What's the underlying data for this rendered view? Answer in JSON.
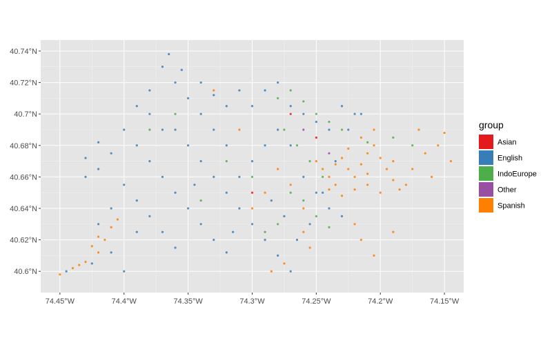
{
  "chart_data": {
    "type": "scatter",
    "title": "",
    "xlabel": "",
    "ylabel": "",
    "xlim": [
      -74.465,
      -74.135
    ],
    "ylim": [
      40.5865,
      40.747
    ],
    "x_ticks": [
      {
        "value": -74.45,
        "label": "74.45°W"
      },
      {
        "value": -74.4,
        "label": "74.4°W"
      },
      {
        "value": -74.35,
        "label": "74.35°W"
      },
      {
        "value": -74.3,
        "label": "74.3°W"
      },
      {
        "value": -74.25,
        "label": "74.25°W"
      },
      {
        "value": -74.2,
        "label": "74.2°W"
      },
      {
        "value": -74.15,
        "label": "74.15°W"
      }
    ],
    "y_ticks": [
      {
        "value": 40.6,
        "label": "40.6°N"
      },
      {
        "value": 40.62,
        "label": "40.62°N"
      },
      {
        "value": 40.64,
        "label": "40.64°N"
      },
      {
        "value": 40.66,
        "label": "40.66°N"
      },
      {
        "value": 40.68,
        "label": "40.68°N"
      },
      {
        "value": 40.7,
        "label": "40.7°N"
      },
      {
        "value": 40.72,
        "label": "40.72°N"
      },
      {
        "value": 40.74,
        "label": "40.74°N"
      }
    ],
    "grid": true,
    "legend": {
      "title": "group",
      "placement": "right",
      "entries": [
        {
          "name": "Asian",
          "color": "#e41a1c"
        },
        {
          "name": "English",
          "color": "#377eb8"
        },
        {
          "name": "IndoEurope",
          "color": "#4daf4a"
        },
        {
          "name": "Other",
          "color": "#984ea3"
        },
        {
          "name": "Spanish",
          "color": "#ff7f00"
        }
      ]
    },
    "series": [
      {
        "name": "English",
        "color": "#377eb8",
        "points": [
          [
            -74.445,
            40.6
          ],
          [
            -74.425,
            40.605
          ],
          [
            -74.41,
            40.612
          ],
          [
            -74.4,
            40.6
          ],
          [
            -74.39,
            40.625
          ],
          [
            -74.43,
            40.672
          ],
          [
            -74.42,
            40.682
          ],
          [
            -74.4,
            40.69
          ],
          [
            -74.39,
            40.705
          ],
          [
            -74.38,
            40.715
          ],
          [
            -74.37,
            40.73
          ],
          [
            -74.365,
            40.738
          ],
          [
            -74.355,
            40.728
          ],
          [
            -74.34,
            40.72
          ],
          [
            -74.33,
            40.712
          ],
          [
            -74.32,
            40.705
          ],
          [
            -74.31,
            40.715
          ],
          [
            -74.3,
            40.705
          ],
          [
            -74.29,
            40.715
          ],
          [
            -74.28,
            40.72
          ],
          [
            -74.27,
            40.705
          ],
          [
            -74.26,
            40.7
          ],
          [
            -74.25,
            40.695
          ],
          [
            -74.24,
            40.69
          ],
          [
            -74.23,
            40.705
          ],
          [
            -74.22,
            40.7
          ],
          [
            -74.36,
            40.69
          ],
          [
            -74.35,
            40.68
          ],
          [
            -74.34,
            40.67
          ],
          [
            -74.33,
            40.66
          ],
          [
            -74.32,
            40.65
          ],
          [
            -74.31,
            40.64
          ],
          [
            -74.3,
            40.63
          ],
          [
            -74.29,
            40.62
          ],
          [
            -74.28,
            40.61
          ],
          [
            -74.27,
            40.6
          ],
          [
            -74.38,
            40.67
          ],
          [
            -74.37,
            40.66
          ],
          [
            -74.36,
            40.65
          ],
          [
            -74.35,
            40.64
          ],
          [
            -74.34,
            40.63
          ],
          [
            -74.33,
            40.62
          ],
          [
            -74.32,
            40.612
          ],
          [
            -74.4,
            40.655
          ],
          [
            -74.39,
            40.645
          ],
          [
            -74.38,
            40.635
          ],
          [
            -74.37,
            40.625
          ],
          [
            -74.36,
            40.615
          ],
          [
            -74.41,
            40.64
          ],
          [
            -74.42,
            40.63
          ],
          [
            -74.26,
            40.66
          ],
          [
            -74.25,
            40.65
          ],
          [
            -74.24,
            40.64
          ],
          [
            -74.23,
            40.635
          ],
          [
            -74.27,
            40.68
          ],
          [
            -74.28,
            40.69
          ],
          [
            -74.29,
            40.68
          ],
          [
            -74.3,
            40.67
          ],
          [
            -74.31,
            40.66
          ],
          [
            -74.32,
            40.68
          ],
          [
            -74.33,
            40.69
          ],
          [
            -74.34,
            40.7
          ],
          [
            -74.35,
            40.71
          ],
          [
            -74.36,
            40.72
          ],
          [
            -74.38,
            40.7
          ],
          [
            -74.41,
            40.675
          ],
          [
            -74.42,
            40.665
          ],
          [
            -74.43,
            40.66
          ],
          [
            -74.39,
            40.68
          ],
          [
            -74.37,
            40.69
          ],
          [
            -74.345,
            40.655
          ],
          [
            -74.315,
            40.625
          ],
          [
            -74.285,
            40.645
          ],
          [
            -74.275,
            40.635
          ],
          [
            -74.265,
            40.62
          ],
          [
            -74.255,
            40.63
          ],
          [
            -74.245,
            40.65
          ],
          [
            -74.235,
            40.67
          ],
          [
            -74.225,
            40.69
          ],
          [
            -74.215,
            40.7
          ]
        ]
      },
      {
        "name": "Spanish",
        "color": "#ff7f00",
        "points": [
          [
            -74.45,
            40.598
          ],
          [
            -74.44,
            40.602
          ],
          [
            -74.43,
            40.606
          ],
          [
            -74.42,
            40.612
          ],
          [
            -74.415,
            40.62
          ],
          [
            -74.41,
            40.628
          ],
          [
            -74.405,
            40.633
          ],
          [
            -74.425,
            40.616
          ],
          [
            -74.435,
            40.604
          ],
          [
            -74.42,
            40.622
          ],
          [
            -74.25,
            40.67
          ],
          [
            -74.245,
            40.665
          ],
          [
            -74.24,
            40.66
          ],
          [
            -74.235,
            40.668
          ],
          [
            -74.23,
            40.672
          ],
          [
            -74.225,
            40.665
          ],
          [
            -74.22,
            40.66
          ],
          [
            -74.215,
            40.668
          ],
          [
            -74.21,
            40.675
          ],
          [
            -74.205,
            40.68
          ],
          [
            -74.2,
            40.672
          ],
          [
            -74.195,
            40.665
          ],
          [
            -74.19,
            40.658
          ],
          [
            -74.185,
            40.652
          ],
          [
            -74.2,
            40.65
          ],
          [
            -74.21,
            40.655
          ],
          [
            -74.22,
            40.652
          ],
          [
            -74.23,
            40.648
          ],
          [
            -74.24,
            40.652
          ],
          [
            -74.215,
            40.685
          ],
          [
            -74.205,
            40.69
          ],
          [
            -74.21,
            40.662
          ],
          [
            -74.225,
            40.678
          ],
          [
            -74.235,
            40.655
          ],
          [
            -74.19,
            40.67
          ],
          [
            -74.18,
            40.655
          ],
          [
            -74.175,
            40.665
          ],
          [
            -74.165,
            40.675
          ],
          [
            -74.16,
            40.66
          ],
          [
            -74.155,
            40.68
          ],
          [
            -74.15,
            40.688
          ],
          [
            -74.145,
            40.67
          ],
          [
            -74.17,
            40.69
          ],
          [
            -74.26,
            40.64
          ],
          [
            -74.27,
            40.655
          ],
          [
            -74.28,
            40.665
          ],
          [
            -74.29,
            40.65
          ],
          [
            -74.3,
            40.64
          ],
          [
            -74.31,
            40.69
          ],
          [
            -74.33,
            40.715
          ],
          [
            -74.285,
            40.6
          ],
          [
            -74.275,
            40.605
          ],
          [
            -74.26,
            40.625
          ],
          [
            -74.255,
            40.615
          ],
          [
            -74.22,
            40.63
          ],
          [
            -74.215,
            40.62
          ],
          [
            -74.205,
            40.61
          ],
          [
            -74.19,
            40.625
          ]
        ]
      },
      {
        "name": "IndoEurope",
        "color": "#4daf4a",
        "points": [
          [
            -74.28,
            40.71
          ],
          [
            -74.27,
            40.715
          ],
          [
            -74.26,
            40.708
          ],
          [
            -74.25,
            40.7
          ],
          [
            -74.24,
            40.695
          ],
          [
            -74.23,
            40.69
          ],
          [
            -74.275,
            40.69
          ],
          [
            -74.265,
            40.68
          ],
          [
            -74.255,
            40.67
          ],
          [
            -74.245,
            40.66
          ],
          [
            -74.27,
            40.65
          ],
          [
            -74.26,
            40.645
          ],
          [
            -74.25,
            40.635
          ],
          [
            -74.24,
            40.628
          ],
          [
            -74.28,
            40.63
          ],
          [
            -74.29,
            40.625
          ],
          [
            -74.3,
            40.66
          ],
          [
            -74.32,
            40.67
          ],
          [
            -74.34,
            40.645
          ],
          [
            -74.36,
            40.7
          ],
          [
            -74.38,
            40.69
          ],
          [
            -74.21,
            40.682
          ],
          [
            -74.19,
            40.685
          ],
          [
            -74.175,
            40.68
          ]
        ]
      },
      {
        "name": "Asian",
        "color": "#e41a1c",
        "points": [
          [
            -74.27,
            40.7
          ],
          [
            -74.25,
            40.685
          ],
          [
            -74.3,
            40.65
          ]
        ]
      },
      {
        "name": "Other",
        "color": "#984ea3",
        "points": [
          [
            -74.26,
            40.69
          ],
          [
            -74.24,
            40.675
          ]
        ]
      }
    ]
  }
}
